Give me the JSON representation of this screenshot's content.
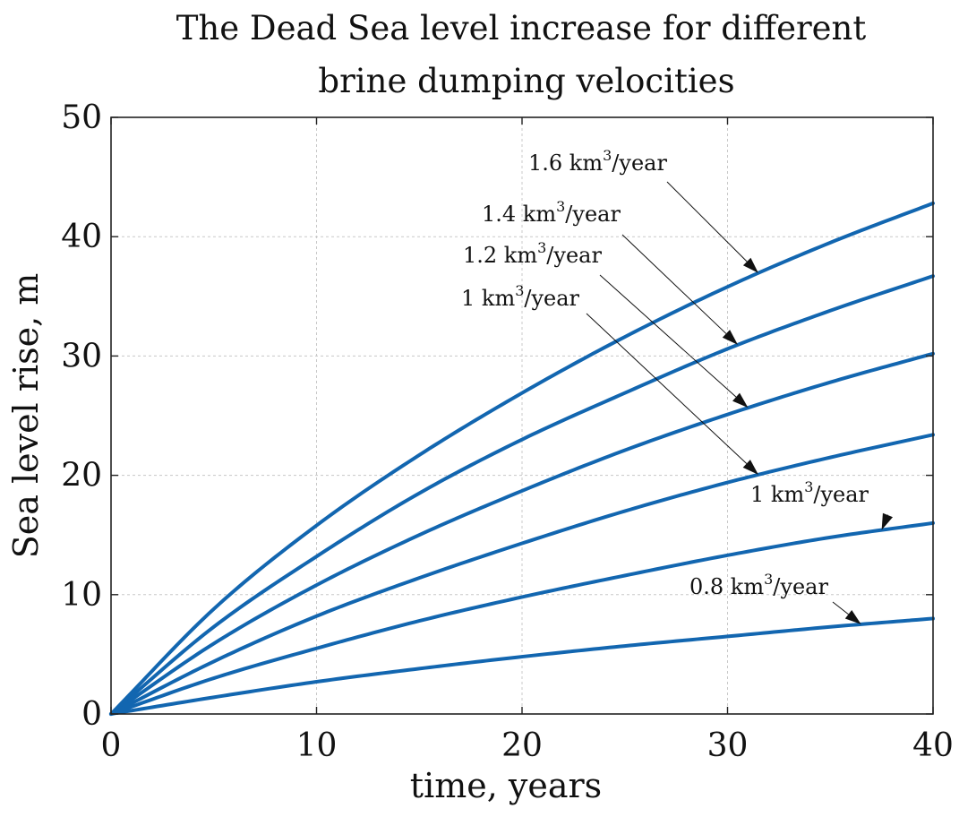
{
  "chart_data": {
    "type": "line",
    "title_lines": [
      "The Dead Sea level increase for different",
      "brine dumping velocities"
    ],
    "xlabel": "time, years",
    "ylabel": "Sea level rise, m",
    "xlim": [
      0,
      40
    ],
    "ylim": [
      0,
      50
    ],
    "xticks": [
      0,
      10,
      20,
      30,
      40
    ],
    "yticks": [
      0,
      10,
      20,
      30,
      40,
      50
    ],
    "grid": true,
    "line_color": "#1266b0",
    "x": [
      0,
      5,
      10,
      15,
      20,
      25,
      30,
      35,
      40
    ],
    "series": [
      {
        "name": "1.6 km³/year",
        "values": [
          0,
          8.8,
          15.8,
          21.7,
          26.9,
          31.6,
          35.8,
          39.5,
          42.8
        ]
      },
      {
        "name": "1.4 km³/year",
        "values": [
          0,
          7.3,
          13.2,
          18.5,
          23.0,
          26.9,
          30.6,
          33.8,
          36.7
        ]
      },
      {
        "name": "1.2 km³/year",
        "values": [
          0,
          5.9,
          10.8,
          15.0,
          18.7,
          22.1,
          25.1,
          27.8,
          30.2
        ]
      },
      {
        "name": "1 km³/year",
        "values": [
          0,
          4.4,
          8.2,
          11.4,
          14.3,
          17.0,
          19.4,
          21.5,
          23.4
        ]
      },
      {
        "name": "1 km³/year",
        "values": [
          0,
          3.0,
          5.5,
          7.8,
          9.8,
          11.6,
          13.3,
          14.8,
          16.0
        ]
      },
      {
        "name": "0.8 km³/year",
        "values": [
          0,
          1.4,
          2.7,
          3.8,
          4.8,
          5.7,
          6.5,
          7.3,
          8.0
        ]
      }
    ],
    "annotations": [
      {
        "base": "1.6 km",
        "sup": "3",
        "unit": "/year",
        "series_index": 0,
        "target_x": 31.5
      },
      {
        "base": "1.4 km",
        "sup": "3",
        "unit": "/year",
        "series_index": 1,
        "target_x": 30.5
      },
      {
        "base": "1.2 km",
        "sup": "3",
        "unit": "/year",
        "series_index": 2,
        "target_x": 31.0
      },
      {
        "base": "1 km",
        "sup": "3",
        "unit": "/year",
        "series_index": 3,
        "target_x": 31.5
      },
      {
        "base": "1 km",
        "sup": "3",
        "unit": "/year",
        "series_index": 4,
        "target_x": 37.5
      },
      {
        "base": "0.8 km",
        "sup": "3",
        "unit": "/year",
        "series_index": 5,
        "target_x": 36.5
      }
    ]
  }
}
